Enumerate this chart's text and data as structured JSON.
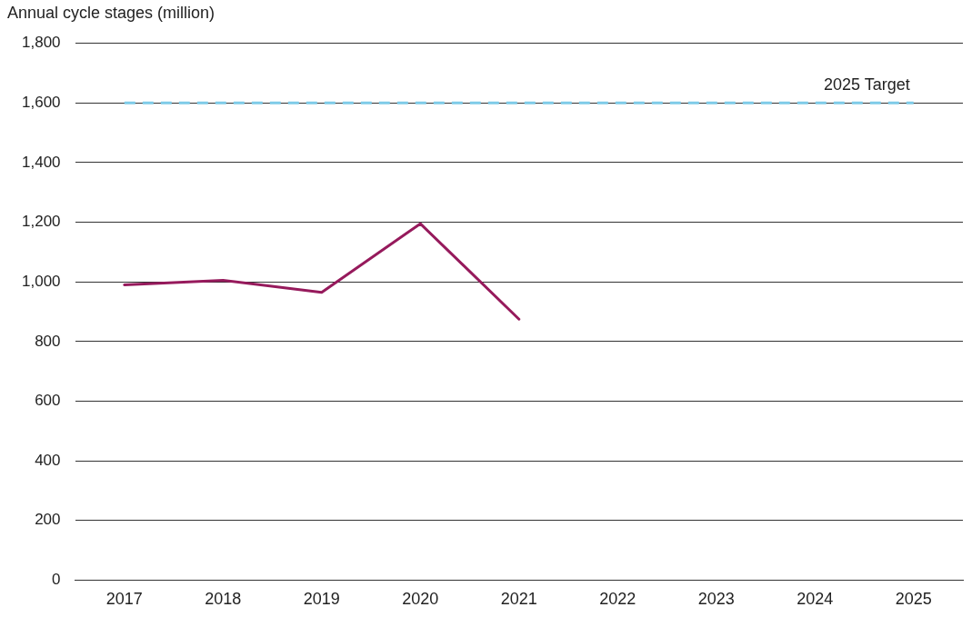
{
  "chart_data": {
    "type": "line",
    "ylabel": "Annual cycle stages (million)",
    "categories": [
      "2017",
      "2018",
      "2019",
      "2020",
      "2021",
      "2022",
      "2023",
      "2024",
      "2025"
    ],
    "series": [
      {
        "color": "#961a5c",
        "values": [
          990,
          1005,
          965,
          1195,
          875,
          null,
          null,
          null,
          null
        ]
      }
    ],
    "ylim": [
      0,
      1800
    ],
    "yticks": [
      0,
      200,
      400,
      600,
      800,
      {
        "value": 1000,
        "label": "1,000"
      },
      {
        "value": 1200,
        "label": "1,200"
      },
      {
        "value": 1400,
        "label": "1,400"
      },
      {
        "value": 1600,
        "label": "1,600"
      },
      {
        "value": 1800,
        "label": "1,800"
      }
    ],
    "ref_lines": [
      {
        "axis": "y",
        "value": 1600,
        "label": "2025 Target",
        "color": "#7ecbe8",
        "line_style": "dashed"
      }
    ],
    "grid": "y",
    "legend": false,
    "marker": "none",
    "line_style": "solid"
  }
}
